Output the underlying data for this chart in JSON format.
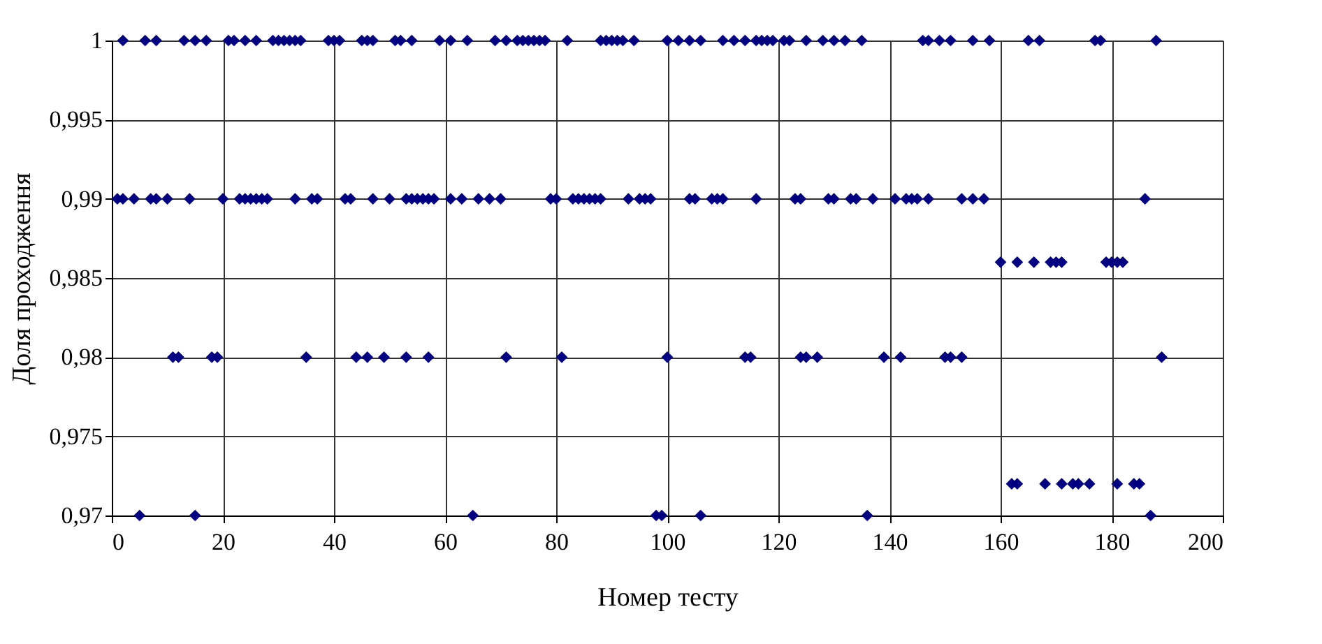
{
  "chart_data": {
    "type": "scatter",
    "xlabel": "Номер тесту",
    "ylabel": "Доля проходження",
    "xlim": [
      0,
      200
    ],
    "xticks": [
      0,
      20,
      40,
      60,
      80,
      100,
      120,
      140,
      160,
      180,
      200
    ],
    "ylim": [
      0.97,
      1
    ],
    "yticks": [
      {
        "value": 0.97,
        "label": "0,97"
      },
      {
        "value": 0.975,
        "label": "0,975"
      },
      {
        "value": 0.98,
        "label": "0,98"
      },
      {
        "value": 0.985,
        "label": "0,985"
      },
      {
        "value": 0.99,
        "label": "0,99"
      },
      {
        "value": 0.995,
        "label": "0,995"
      },
      {
        "value": 1,
        "label": "1"
      }
    ],
    "grid": true,
    "marker": "diamond",
    "legend": false,
    "series": [
      {
        "color": "#000080",
        "x": [
          2,
          6,
          8,
          13,
          15,
          17,
          21,
          22,
          24,
          26,
          29,
          30,
          31,
          32,
          33,
          34,
          39,
          40,
          41,
          45,
          46,
          47,
          51,
          52,
          54,
          59,
          61,
          64,
          69,
          71,
          73,
          74,
          75,
          76,
          77,
          78,
          82,
          88,
          89,
          90,
          91,
          92,
          94,
          100,
          102,
          104,
          106,
          110,
          112,
          114,
          116,
          117,
          118,
          119,
          121,
          122,
          125,
          128,
          130,
          132,
          135,
          146,
          147,
          149,
          151,
          155,
          158,
          165,
          167,
          177,
          178,
          188,
          1,
          2,
          4,
          7,
          8,
          10,
          14,
          20,
          23,
          24,
          25,
          26,
          27,
          28,
          33,
          36,
          37,
          42,
          43,
          47,
          50,
          53,
          54,
          55,
          56,
          57,
          58,
          61,
          63,
          66,
          68,
          70,
          79,
          80,
          83,
          84,
          85,
          86,
          87,
          88,
          93,
          95,
          96,
          97,
          104,
          105,
          108,
          109,
          110,
          116,
          123,
          124,
          129,
          130,
          133,
          134,
          137,
          141,
          143,
          144,
          145,
          147,
          153,
          155,
          157,
          186,
          160,
          163,
          166,
          169,
          170,
          171,
          179,
          180,
          181,
          182,
          11,
          12,
          18,
          19,
          35,
          44,
          46,
          49,
          53,
          57,
          71,
          81,
          100,
          114,
          115,
          124,
          125,
          127,
          139,
          142,
          150,
          151,
          153,
          189,
          162,
          163,
          168,
          171,
          173,
          174,
          176,
          181,
          184,
          185,
          5,
          15,
          65,
          98,
          99,
          106,
          136,
          187
        ],
        "values": [
          1,
          1,
          1,
          1,
          1,
          1,
          1,
          1,
          1,
          1,
          1,
          1,
          1,
          1,
          1,
          1,
          1,
          1,
          1,
          1,
          1,
          1,
          1,
          1,
          1,
          1,
          1,
          1,
          1,
          1,
          1,
          1,
          1,
          1,
          1,
          1,
          1,
          1,
          1,
          1,
          1,
          1,
          1,
          1,
          1,
          1,
          1,
          1,
          1,
          1,
          1,
          1,
          1,
          1,
          1,
          1,
          1,
          1,
          1,
          1,
          1,
          1,
          1,
          1,
          1,
          1,
          1,
          1,
          1,
          1,
          1,
          1,
          0.99,
          0.99,
          0.99,
          0.99,
          0.99,
          0.99,
          0.99,
          0.99,
          0.99,
          0.99,
          0.99,
          0.99,
          0.99,
          0.99,
          0.99,
          0.99,
          0.99,
          0.99,
          0.99,
          0.99,
          0.99,
          0.99,
          0.99,
          0.99,
          0.99,
          0.99,
          0.99,
          0.99,
          0.99,
          0.99,
          0.99,
          0.99,
          0.99,
          0.99,
          0.99,
          0.99,
          0.99,
          0.99,
          0.99,
          0.99,
          0.99,
          0.99,
          0.99,
          0.99,
          0.99,
          0.99,
          0.99,
          0.99,
          0.99,
          0.99,
          0.99,
          0.99,
          0.99,
          0.99,
          0.99,
          0.99,
          0.99,
          0.99,
          0.99,
          0.99,
          0.99,
          0.99,
          0.99,
          0.99,
          0.99,
          0.99,
          0.986,
          0.986,
          0.986,
          0.986,
          0.986,
          0.986,
          0.986,
          0.986,
          0.986,
          0.986,
          0.98,
          0.98,
          0.98,
          0.98,
          0.98,
          0.98,
          0.98,
          0.98,
          0.98,
          0.98,
          0.98,
          0.98,
          0.98,
          0.98,
          0.98,
          0.98,
          0.98,
          0.98,
          0.98,
          0.98,
          0.98,
          0.98,
          0.98,
          0.98,
          0.972,
          0.972,
          0.972,
          0.972,
          0.972,
          0.972,
          0.972,
          0.972,
          0.972,
          0.972,
          0.97,
          0.97,
          0.97,
          0.97,
          0.97,
          0.97,
          0.97,
          0.97
        ]
      }
    ]
  }
}
